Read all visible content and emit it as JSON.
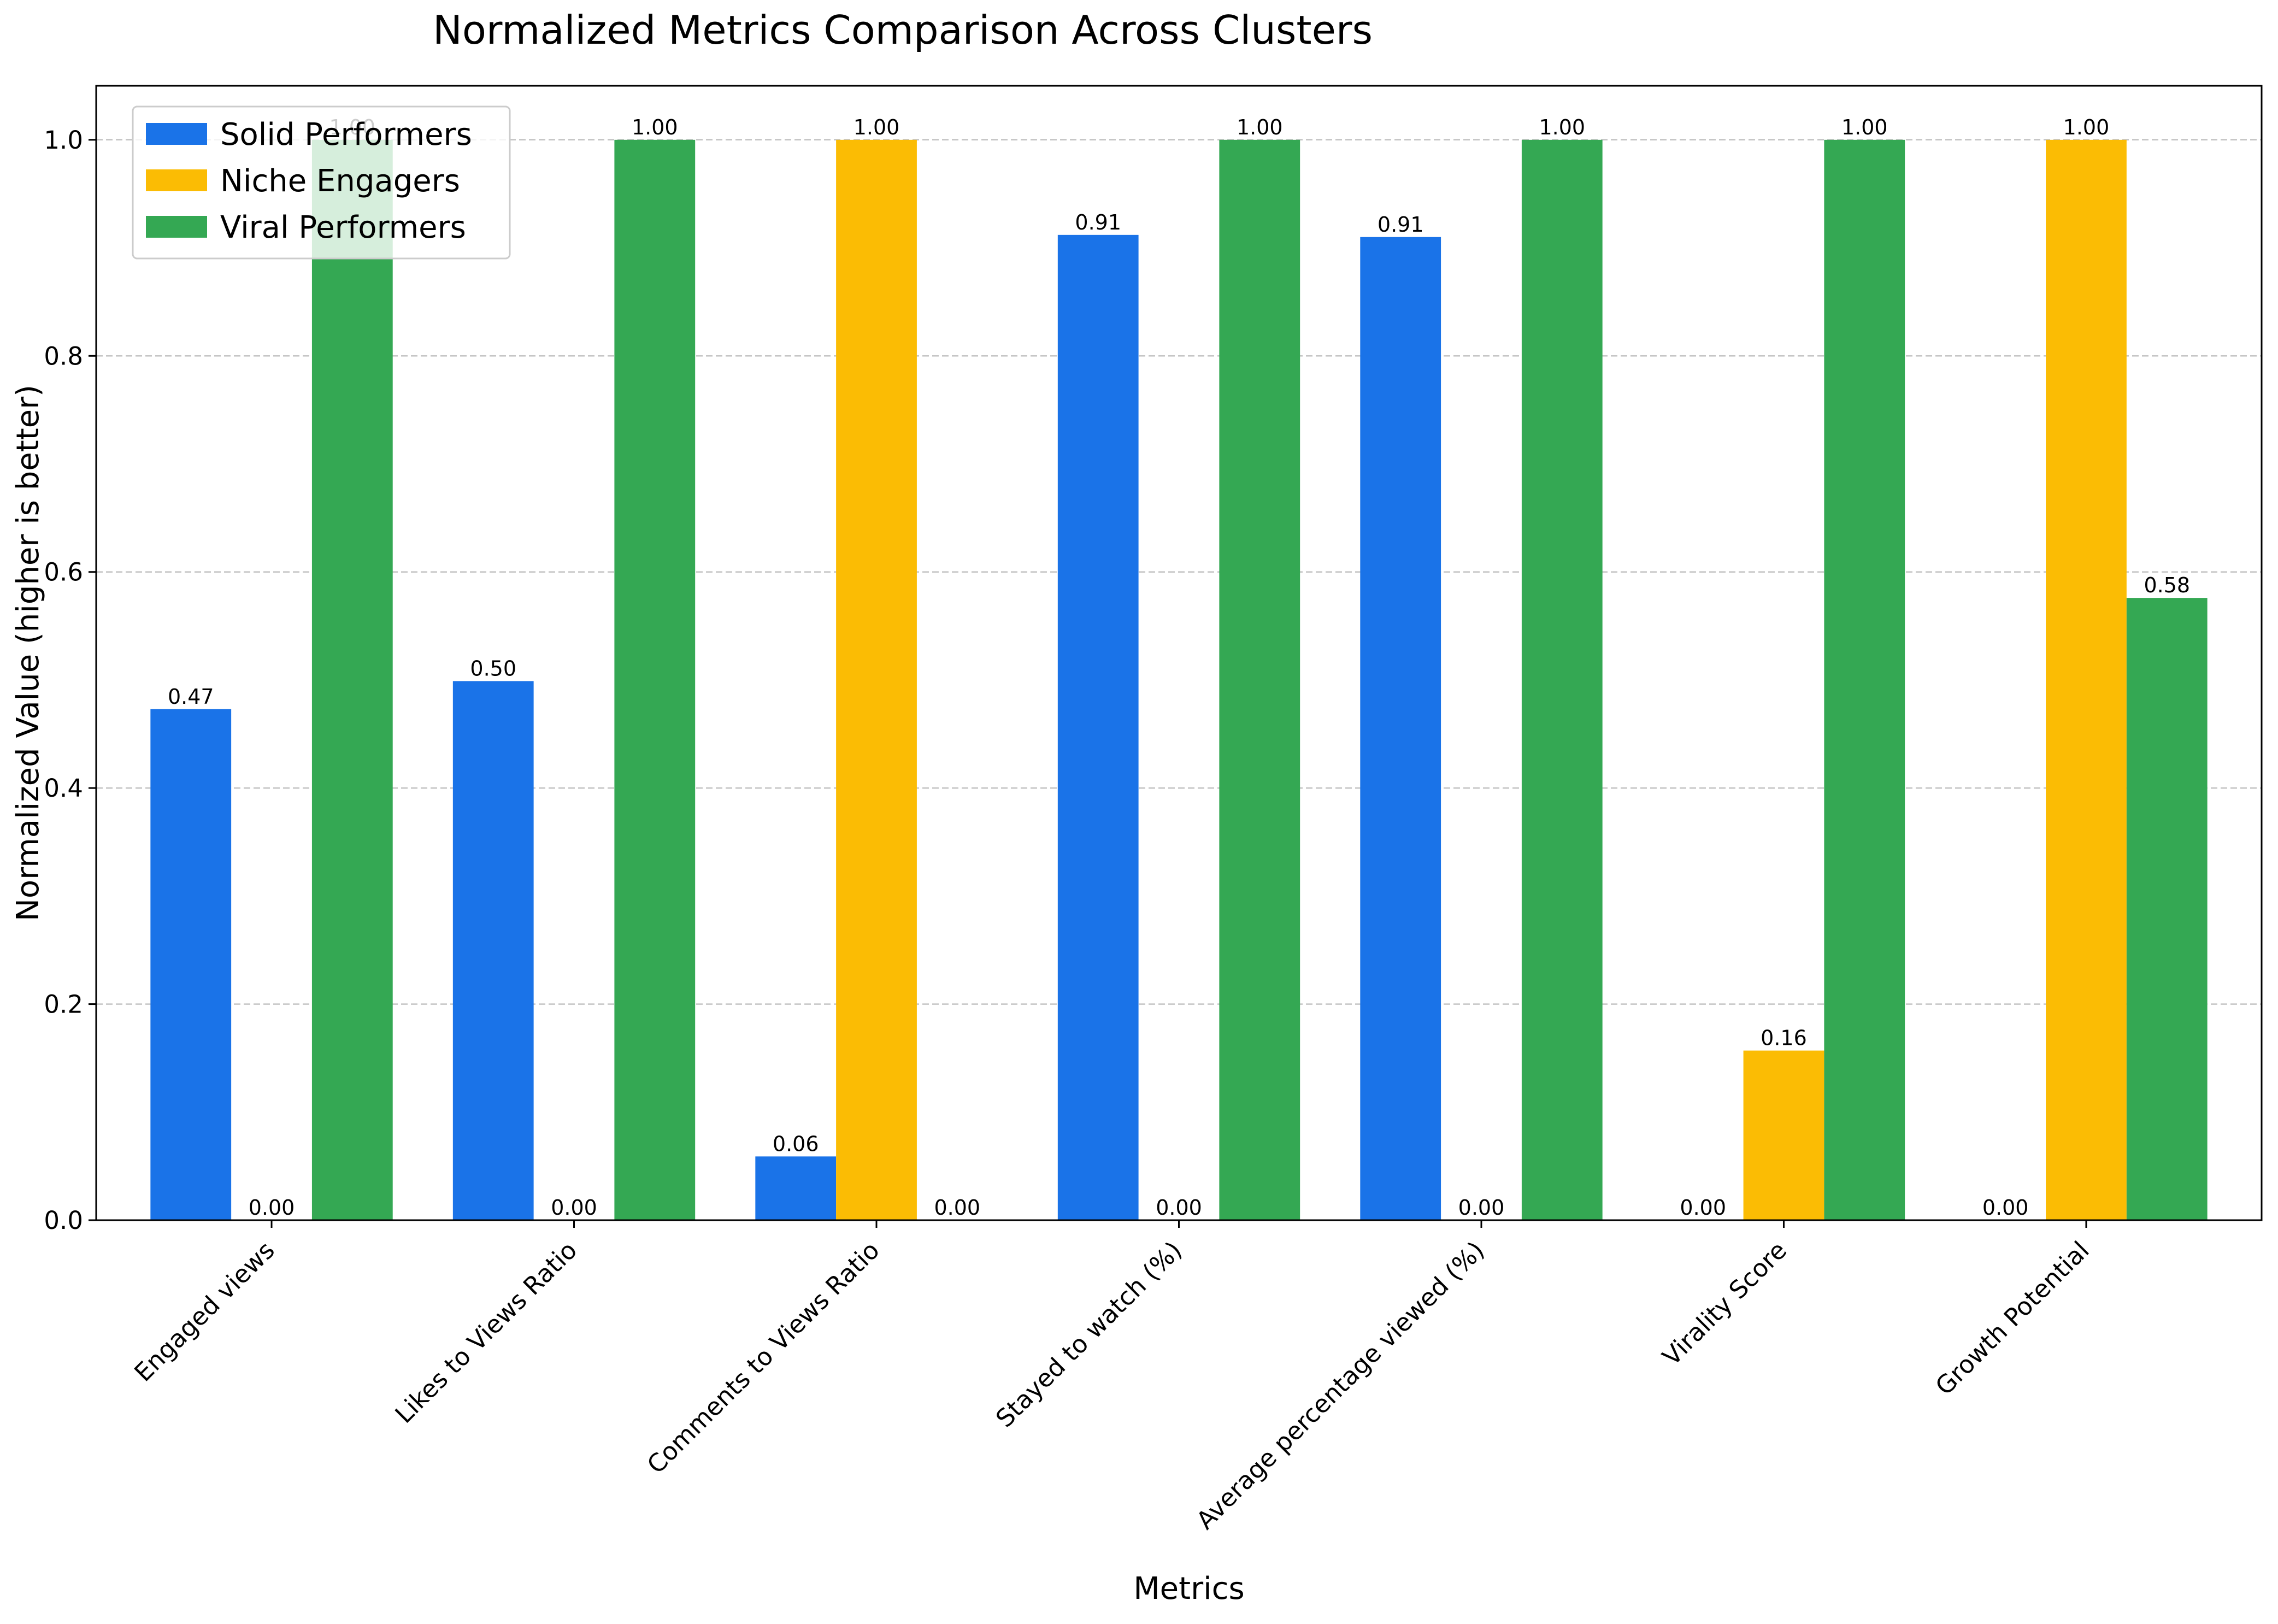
{
  "chart_data": {
    "type": "bar",
    "title": "Normalized Metrics Comparison Across Clusters",
    "xlabel": "Metrics",
    "ylabel": "Normalized Value (higher is better)",
    "ylim": [
      0,
      1.05
    ],
    "yticks": [
      0.0,
      0.2,
      0.4,
      0.6,
      0.8,
      1.0
    ],
    "ytick_labels": [
      "0.0",
      "0.2",
      "0.4",
      "0.6",
      "0.8",
      "1.0"
    ],
    "grid": "y, dashed",
    "legend_position": "top-left",
    "categories": [
      "Engaged views",
      "Likes to Views Ratio",
      "Comments to Views Ratio",
      "Stayed to watch (%)",
      "Average percentage viewed (%)",
      "Virality Score",
      "Growth Potential"
    ],
    "series": [
      {
        "name": "Solid Performers",
        "color": "#1a73e8",
        "values": [
          0.473,
          0.499,
          0.059,
          0.912,
          0.91,
          0.0,
          0.0
        ],
        "labels": [
          "0.47",
          "0.50",
          "0.06",
          "0.91",
          "0.91",
          "0.00",
          "0.00"
        ]
      },
      {
        "name": "Niche Engagers",
        "color": "#fbbc04",
        "values": [
          0.0,
          0.0,
          1.0,
          0.0,
          0.0,
          0.157,
          1.0
        ],
        "labels": [
          "0.00",
          "0.00",
          "1.00",
          "0.00",
          "0.00",
          "0.16",
          "1.00"
        ]
      },
      {
        "name": "Viral Performers",
        "color": "#34a853",
        "values": [
          1.0,
          1.0,
          0.0,
          1.0,
          1.0,
          1.0,
          0.576
        ],
        "labels": [
          "1.00",
          "1.00",
          "0.00",
          "1.00",
          "1.00",
          "1.00",
          "0.58"
        ]
      }
    ]
  }
}
